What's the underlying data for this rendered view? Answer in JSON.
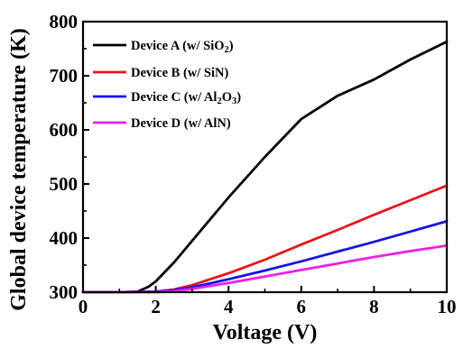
{
  "chart_data": {
    "type": "line",
    "xlabel": "Voltage (V)",
    "ylabel": "Global device temperature (K)",
    "xlim": [
      0,
      10
    ],
    "ylim": [
      300,
      800
    ],
    "xticks": [
      0,
      2,
      4,
      6,
      8,
      10
    ],
    "yticks": [
      300,
      400,
      500,
      600,
      700,
      800
    ],
    "x_tick_labels": [
      "0",
      "2",
      "4",
      "6",
      "8",
      "10"
    ],
    "y_tick_labels": [
      "300",
      "400",
      "500",
      "600",
      "700",
      "800"
    ],
    "grid": false,
    "legend_position": "top-left",
    "series": [
      {
        "name": "Device A (w/ SiO2)",
        "color": "#000000",
        "x": [
          0,
          1,
          1.5,
          1.8,
          2,
          2.5,
          3,
          4,
          5,
          6,
          7,
          8,
          9,
          10
        ],
        "y": [
          300,
          300,
          301,
          310,
          320,
          355,
          395,
          475,
          550,
          620,
          663,
          693,
          730,
          763
        ]
      },
      {
        "name": "Device B (w/ SiN)",
        "color": "#e8141b",
        "x": [
          0,
          1,
          2,
          2.5,
          3,
          4,
          5,
          6,
          7,
          8,
          9,
          10
        ],
        "y": [
          300,
          300,
          301,
          305,
          313,
          335,
          360,
          388,
          415,
          443,
          470,
          497
        ]
      },
      {
        "name": "Device C (w/ Al2O3)",
        "color": "#1414e6",
        "x": [
          0,
          1,
          2,
          2.5,
          3,
          4,
          5,
          6,
          7,
          8,
          9,
          10
        ],
        "y": [
          300,
          300,
          301,
          304,
          309,
          324,
          340,
          357,
          375,
          393,
          412,
          431
        ]
      },
      {
        "name": "Device D (w/ AlN)",
        "color": "#ee1ee8",
        "x": [
          0,
          1,
          2,
          2.5,
          3,
          4,
          5,
          6,
          7,
          8,
          9,
          10
        ],
        "y": [
          300,
          300,
          300,
          302,
          306,
          317,
          329,
          341,
          353,
          365,
          376,
          386
        ]
      }
    ]
  }
}
